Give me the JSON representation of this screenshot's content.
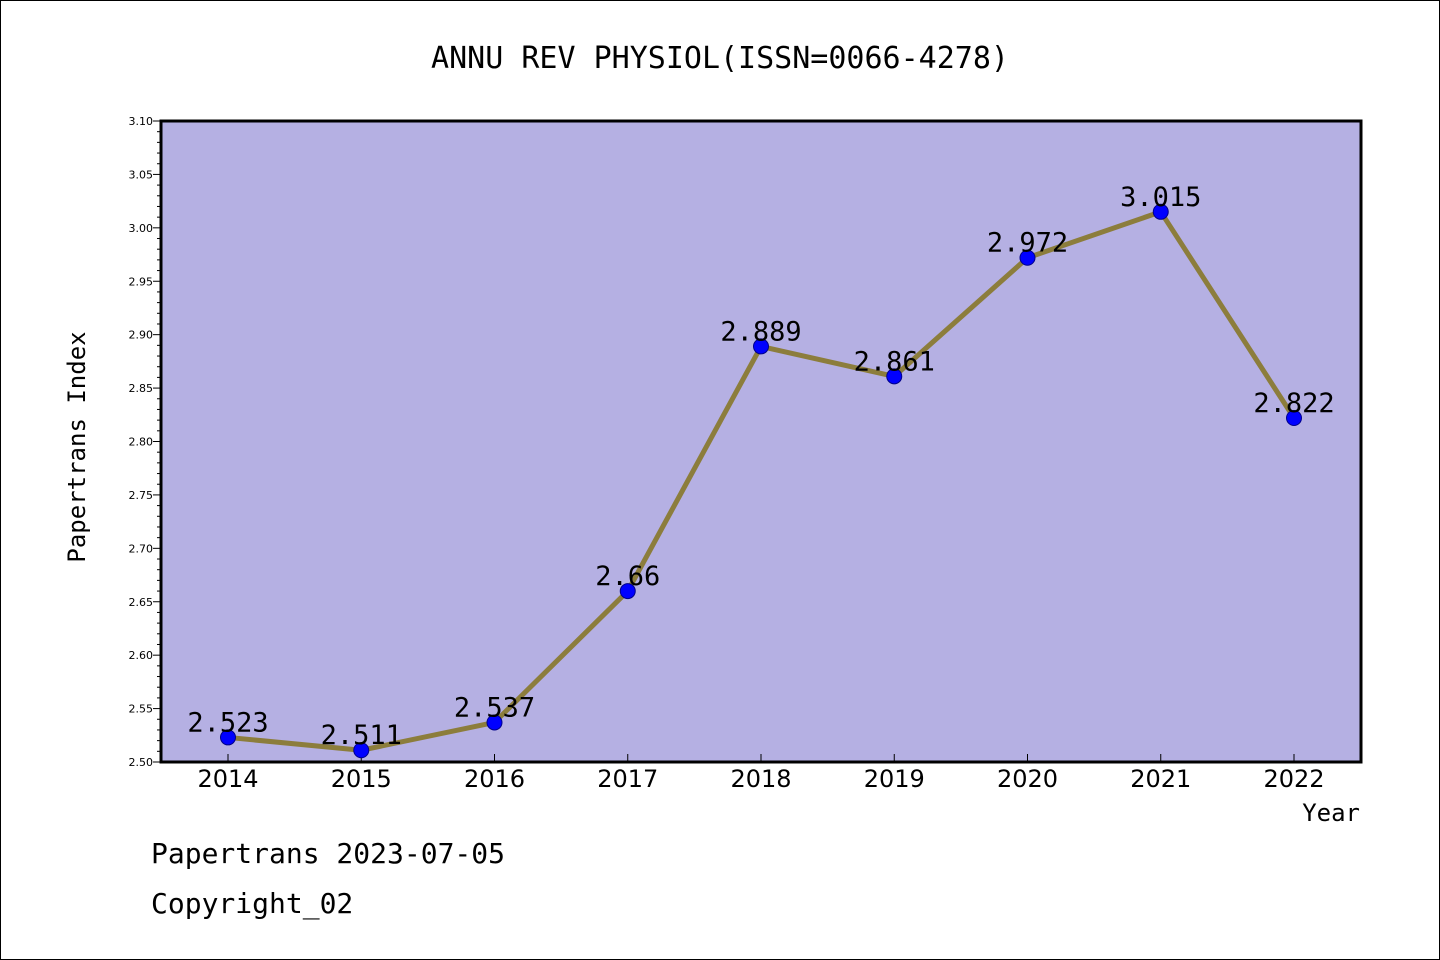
{
  "chart_data": {
    "type": "line",
    "title": "ANNU REV PHYSIOL(ISSN=0066-4278)",
    "xlabel": "Year",
    "ylabel": "Papertrans Index",
    "categories": [
      "2014",
      "2015",
      "2016",
      "2017",
      "2018",
      "2019",
      "2020",
      "2021",
      "2022"
    ],
    "values": [
      2.523,
      2.511,
      2.537,
      2.66,
      2.889,
      2.861,
      2.972,
      3.015,
      2.822
    ],
    "data_labels": [
      "2.523",
      "2.511",
      "2.537",
      "2.66",
      "2.889",
      "2.861",
      "2.972",
      "3.015",
      "2.822"
    ],
    "ylim": [
      2.5,
      3.1
    ],
    "yticks": [
      "2.50",
      "2.55",
      "2.60",
      "2.65",
      "2.70",
      "2.75",
      "2.80",
      "2.85",
      "2.90",
      "2.95",
      "3.00",
      "3.05",
      "3.10"
    ],
    "grid": false,
    "colors": {
      "plot_background": "#b5b0e3",
      "line": "#8c7d3c",
      "marker": "#0000ff"
    }
  },
  "footer": {
    "date_text": "Papertrans 2023-07-05",
    "copyright_text": "Copyright_02"
  }
}
